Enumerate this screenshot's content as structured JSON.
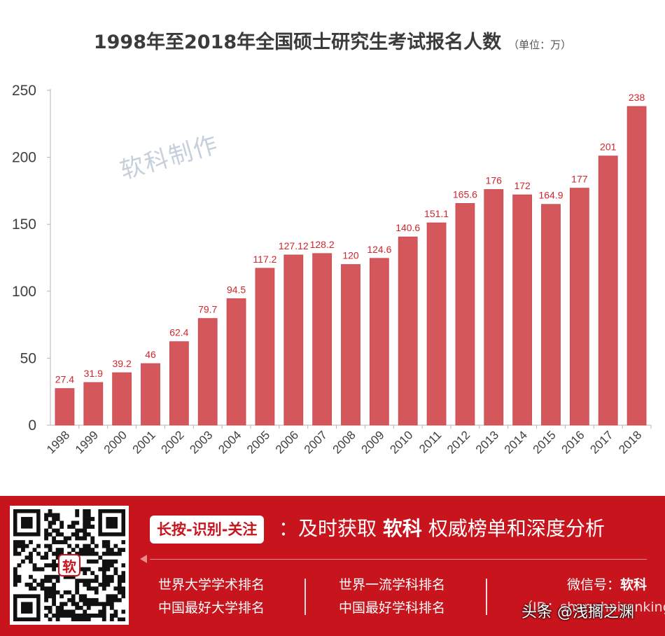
{
  "chart_data": {
    "type": "bar",
    "title": "1998年至2018年全国硕士研究生考试报名人数",
    "unit_note": "（单位：万）",
    "categories": [
      "1998",
      "1999",
      "2000",
      "2001",
      "2002",
      "2003",
      "2004",
      "2005",
      "2006",
      "2007",
      "2008",
      "2009",
      "2010",
      "2011",
      "2012",
      "2013",
      "2014",
      "2015",
      "2016",
      "2017",
      "2018"
    ],
    "values": [
      27.4,
      31.9,
      39.2,
      46,
      62.4,
      79.7,
      94.5,
      117.2,
      127.12,
      128.2,
      120,
      124.6,
      140.6,
      151.1,
      165.6,
      176,
      172,
      164.9,
      177,
      201,
      238
    ],
    "value_labels": [
      "27.4",
      "31.9",
      "39.2",
      "46",
      "62.4",
      "79.7",
      "94.5",
      "117.2",
      "127.12",
      "128.2",
      "120",
      "124.6",
      "140.6",
      "151.1",
      "165.6",
      "176",
      "172",
      "164.9",
      "177",
      "201",
      "238"
    ],
    "y_ticks": [
      0,
      50,
      100,
      150,
      200,
      250
    ],
    "ylim": [
      0,
      250
    ],
    "grid": false,
    "colors": {
      "bar": "#d4575c",
      "bar_edge": "#c94a50",
      "label": "#d0262e",
      "axis_text": "#404040",
      "axis_line": "#b5b5b5"
    }
  },
  "watermark": "软科制作",
  "banner": {
    "background": "#c8141c",
    "qr_logo": "软",
    "tag": "长按-识别-关注",
    "headline_prefix": "：及时获取 ",
    "brand": "软科",
    "headline_suffix": " 权威榜单和深度分析",
    "links": [
      "世界大学学术排名",
      "中国最好大学排名",
      "世界一流学科排名",
      "中国最好学科排名"
    ],
    "wechat_label": "微信号：",
    "wechat_id": "软科",
    "wechat_sub": "（ID：shanghairanking）",
    "source_mark": "头条 @浅搁之渊"
  }
}
